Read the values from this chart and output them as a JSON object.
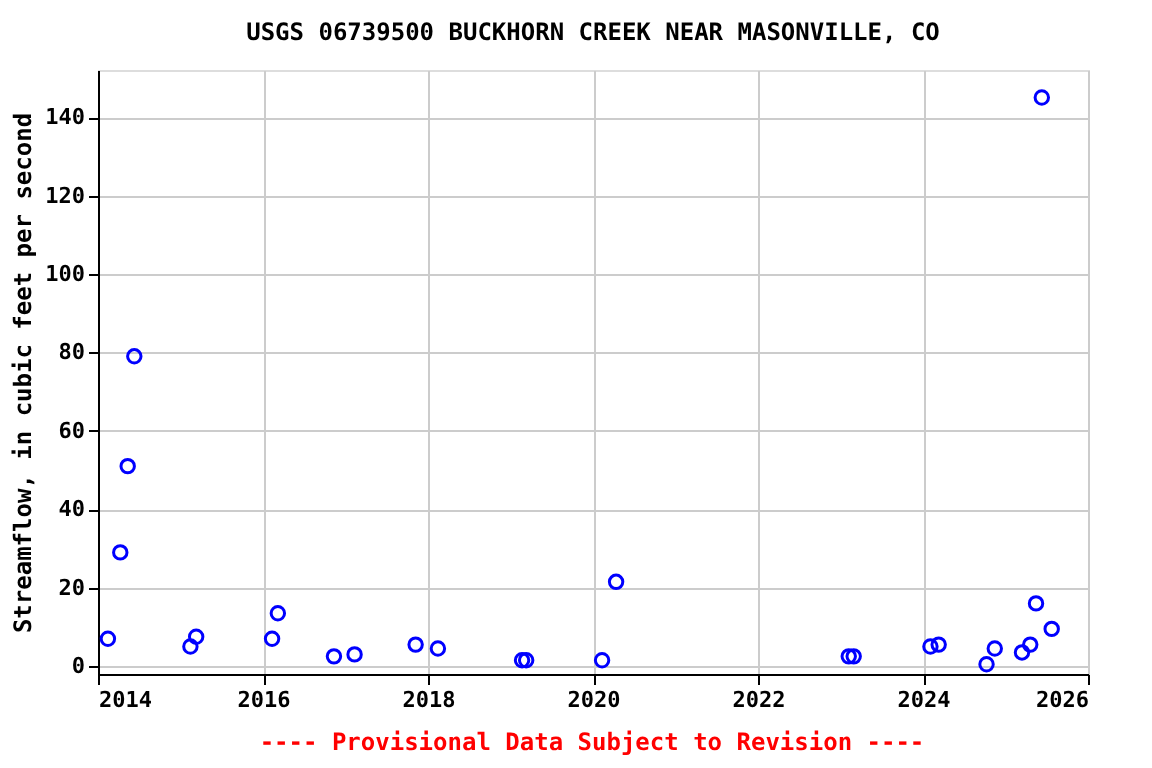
{
  "chart_data": {
    "type": "scatter",
    "title": "USGS 06739500 BUCKHORN CREEK NEAR MASONVILLE, CO",
    "ylabel": "Streamflow, in cubic feet per second",
    "x": [
      2014.12,
      2014.27,
      2014.36,
      2014.44,
      2015.12,
      2015.19,
      2016.11,
      2016.18,
      2016.86,
      2017.11,
      2017.85,
      2018.12,
      2019.14,
      2019.19,
      2020.11,
      2020.28,
      2023.1,
      2023.16,
      2024.09,
      2024.19,
      2024.77,
      2024.87,
      2025.2,
      2025.3,
      2025.37,
      2025.44,
      2025.56
    ],
    "series": [
      {
        "color": "#0000ff",
        "values": [
          7,
          29,
          51,
          79,
          5,
          7.5,
          7,
          13.5,
          2.5,
          3,
          5.5,
          4.5,
          1.5,
          1.5,
          1.5,
          21.5,
          2.5,
          2.5,
          5,
          5.5,
          0.5,
          4.5,
          3.5,
          5.5,
          16,
          145,
          9.5
        ]
      }
    ],
    "xlim": [
      2014,
      2026
    ],
    "xticks": [
      2014,
      2016,
      2018,
      2020,
      2022,
      2024,
      2026
    ],
    "ylim": [
      -2,
      152
    ],
    "yticks": [
      0,
      20,
      40,
      60,
      80,
      100,
      120,
      140
    ],
    "grid": true,
    "marker": "circle",
    "annotations": [
      "---- Provisional Data Subject to Revision ----"
    ]
  }
}
